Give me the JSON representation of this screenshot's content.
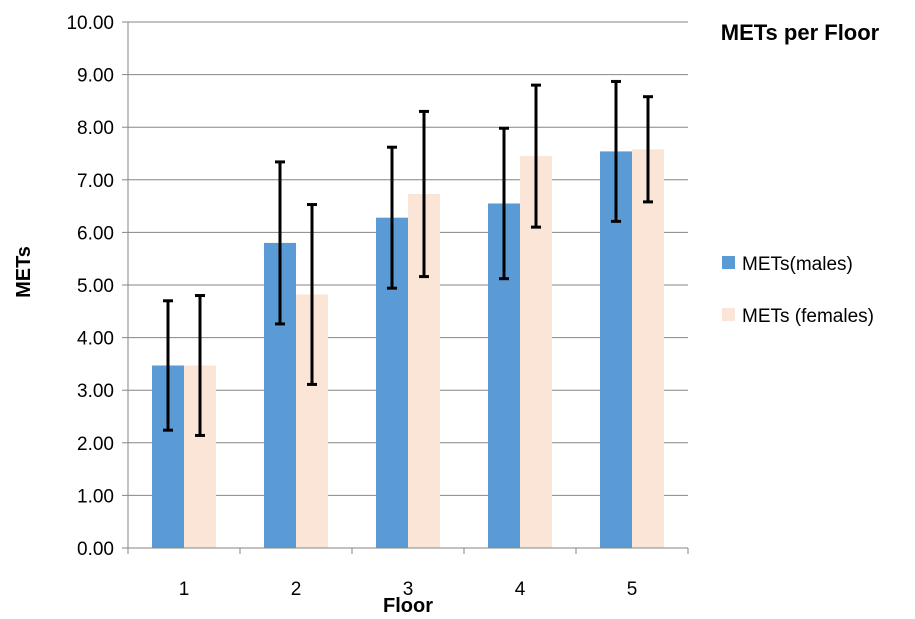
{
  "chart_data": {
    "type": "bar",
    "title": "METs per Floor",
    "xlabel": "Floor",
    "ylabel": "METs",
    "categories": [
      "1",
      "2",
      "3",
      "4",
      "5"
    ],
    "ylim": [
      0,
      10
    ],
    "ytick_step": 1,
    "ytick_decimals": 2,
    "grid": "horizontal",
    "legend_position": "right",
    "series": [
      {
        "name": "METs(males)",
        "color": "#5B9BD5",
        "values": [
          3.47,
          5.8,
          6.28,
          6.55,
          7.54
        ],
        "error": [
          1.23,
          1.54,
          1.34,
          1.43,
          1.33
        ]
      },
      {
        "name": "METs (females)",
        "color": "#FBE5D6",
        "values": [
          3.47,
          4.82,
          6.73,
          7.45,
          7.58
        ],
        "error": [
          1.33,
          1.71,
          1.57,
          1.35,
          1.0
        ]
      }
    ]
  }
}
